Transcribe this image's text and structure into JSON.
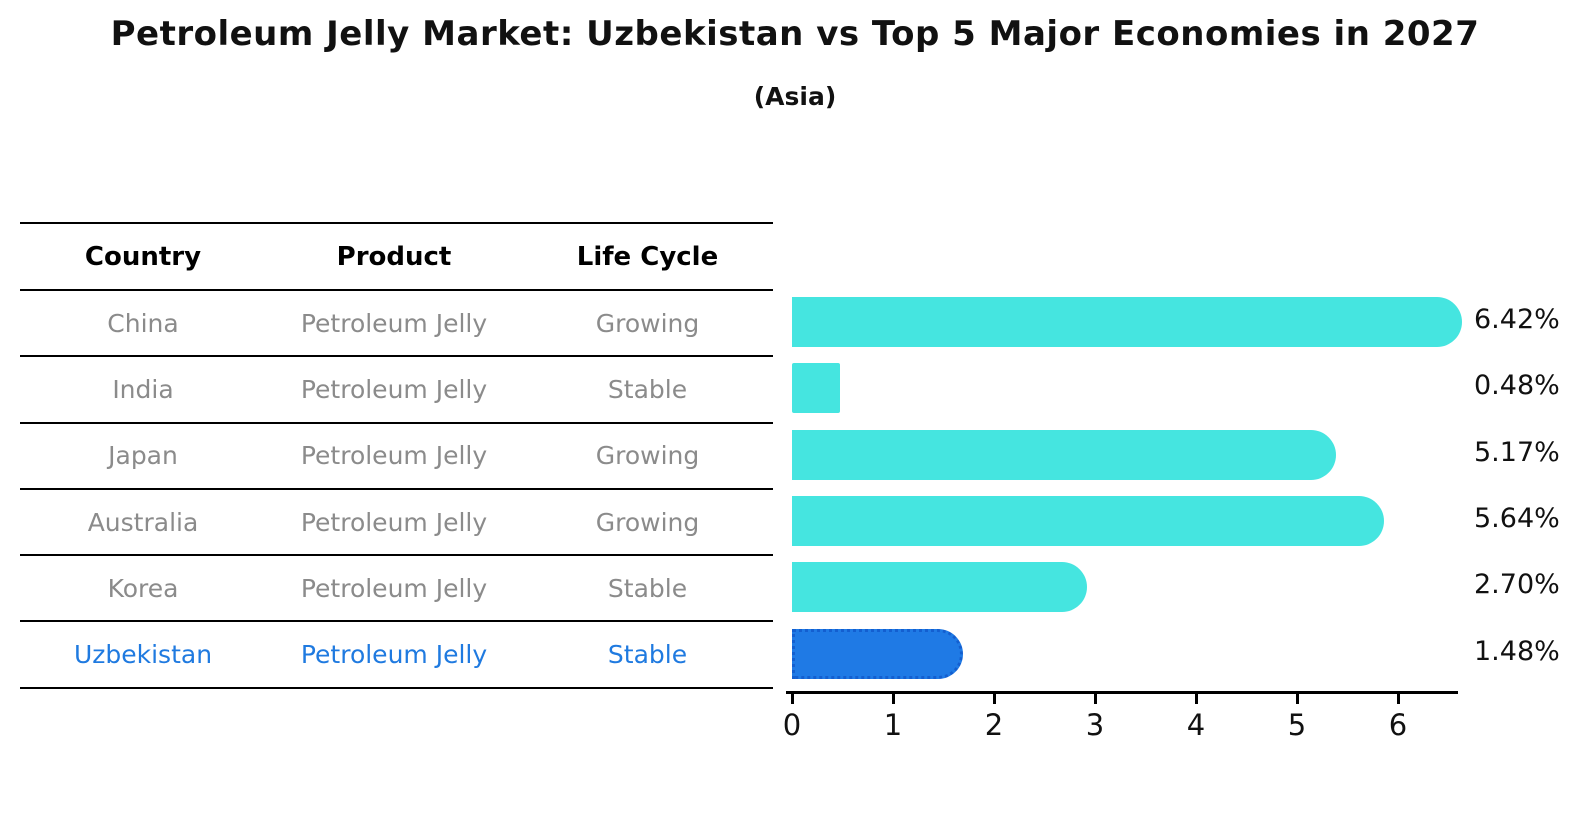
{
  "title": "Petroleum Jelly Market: Uzbekistan vs Top 5 Major Economies in 2027",
  "subtitle": "(Asia)",
  "table": {
    "headers": [
      "Country",
      "Product",
      "Life Cycle"
    ],
    "rows": [
      {
        "country": "China",
        "product": "Petroleum Jelly",
        "life_cycle": "Growing",
        "highlight": false
      },
      {
        "country": "India",
        "product": "Petroleum Jelly",
        "life_cycle": "Stable",
        "highlight": false
      },
      {
        "country": "Japan",
        "product": "Petroleum Jelly",
        "life_cycle": "Growing",
        "highlight": false
      },
      {
        "country": "Australia",
        "product": "Petroleum Jelly",
        "life_cycle": "Growing",
        "highlight": false
      },
      {
        "country": "Korea",
        "product": "Petroleum Jelly",
        "life_cycle": "Stable",
        "highlight": false
      },
      {
        "country": "Uzbekistan",
        "product": "Petroleum Jelly",
        "life_cycle": "Stable",
        "highlight": true
      }
    ]
  },
  "chart_data": {
    "type": "bar",
    "orientation": "horizontal",
    "title": "Petroleum Jelly Market: Uzbekistan vs Top 5 Major Economies in 2027",
    "subtitle": "(Asia)",
    "categories": [
      "China",
      "India",
      "Japan",
      "Australia",
      "Korea",
      "Uzbekistan"
    ],
    "values": [
      6.42,
      0.48,
      5.17,
      5.64,
      2.7,
      1.48
    ],
    "labels": [
      "6.42%",
      "0.48%",
      "5.17%",
      "5.64%",
      "2.70%",
      "1.48%"
    ],
    "unit": "percent",
    "x_ticks": [
      0,
      1,
      2,
      3,
      4,
      5,
      6
    ],
    "xlim": [
      0,
      6.6
    ],
    "grid": false,
    "legend": false,
    "bar_color": "#45E5E0",
    "highlight_index": 5,
    "highlight_color": "#1F7AE5",
    "highlight_border_color": "#135FD0",
    "highlight_text_color": "#1F7AE0"
  }
}
